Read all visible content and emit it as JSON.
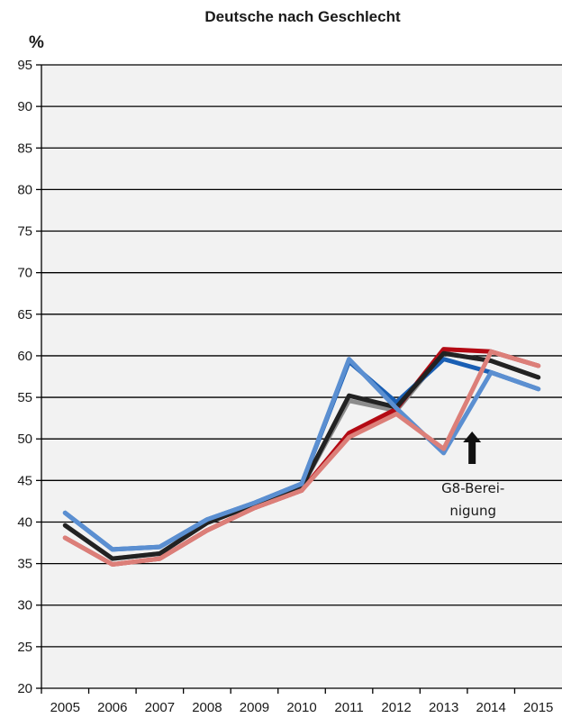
{
  "chart_data": {
    "type": "line",
    "title": "Deutsche nach Geschlecht",
    "ylabel": "%",
    "xlabel": "",
    "ylim": [
      20,
      95
    ],
    "ytick_step": 5,
    "grid": true,
    "categories": [
      "2005",
      "2006",
      "2007",
      "2008",
      "2009",
      "2010",
      "2011",
      "2012",
      "2013",
      "2014",
      "2015"
    ],
    "series": [
      {
        "color": "#8c8c8c",
        "values": [
          39.6,
          35.6,
          36.2,
          39.9,
          42.1,
          44.2,
          54.6,
          53.4,
          60.3,
          59.4,
          57.4
        ]
      },
      {
        "color": "#b40a14",
        "values": [
          38.1,
          34.9,
          35.6,
          39.0,
          41.7,
          43.8,
          50.7,
          53.6,
          60.8,
          60.5,
          58.8
        ]
      },
      {
        "color": "#1a5fb4",
        "values": [
          41.1,
          36.7,
          37.0,
          40.3,
          42.3,
          44.6,
          59.3,
          54.4,
          59.6,
          58.0,
          56.0
        ]
      },
      {
        "color": "#222222",
        "values": [
          39.6,
          35.6,
          36.2,
          39.9,
          42.1,
          44.2,
          55.2,
          53.8,
          60.3,
          59.4,
          57.4
        ]
      },
      {
        "color": "#5b8fd1",
        "values": [
          41.1,
          36.7,
          37.0,
          40.3,
          42.3,
          44.6,
          59.6,
          53.7,
          48.3,
          58.0,
          56.0
        ]
      },
      {
        "color": "#dc7f79",
        "values": [
          38.1,
          34.9,
          35.6,
          39.0,
          41.7,
          43.8,
          50.2,
          53.0,
          48.8,
          60.5,
          58.8
        ]
      }
    ],
    "annotation": {
      "arrow_icon": "up-arrow-icon",
      "x_category": "2014",
      "value": 48.5,
      "line1": "G8-Berei-",
      "line2": "nigung"
    }
  }
}
